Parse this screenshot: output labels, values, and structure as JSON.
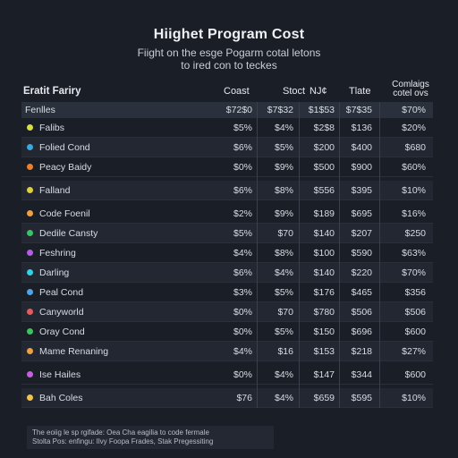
{
  "header": {
    "title": "Hiighet Program Cost",
    "subtitle_line1": "Fiight on the esge Pogarm cotal letons",
    "subtitle_line2": "to ired con to teckes"
  },
  "table": {
    "columns": [
      "Eratit Fariry",
      "Coast",
      "Stoct",
      "NJ¢",
      "Tlate",
      "Comlaigs cotel ovs"
    ],
    "header_row": {
      "name": "Fenlles",
      "values": [
        "$72$0",
        "$7$32",
        "$1$53",
        "$7$35",
        "$70%"
      ]
    },
    "rows": [
      {
        "name": "Falibs",
        "color": "#d6e040",
        "values": [
          "$5%",
          "$4%",
          "$2$8",
          "$136",
          "$20%"
        ]
      },
      {
        "name": "Folied Cond",
        "color": "#39a9e0",
        "values": [
          "$6%",
          "$5%",
          "$200",
          "$400",
          "$680"
        ]
      },
      {
        "name": "Peacy Baidy",
        "color": "#f07f2a",
        "values": [
          "$0%",
          "$9%",
          "$500",
          "$900",
          "$60%"
        ]
      },
      {
        "name": "Falland",
        "color": "#e2cf3c",
        "values": [
          "$6%",
          "$8%",
          "$556",
          "$395",
          "$10%"
        ]
      },
      {
        "name": "Code Foenil",
        "color": "#f0a03c",
        "values": [
          "$2%",
          "$9%",
          "$189",
          "$695",
          "$16%"
        ]
      },
      {
        "name": "Dedile Cansty",
        "color": "#37c463",
        "values": [
          "$5%",
          "$70",
          "$140",
          "$207",
          "$250"
        ]
      },
      {
        "name": "Feshring",
        "color": "#b65be6",
        "values": [
          "$4%",
          "$8%",
          "$100",
          "$590",
          "$63%"
        ]
      },
      {
        "name": "Darling",
        "color": "#2ed3e6",
        "values": [
          "$6%",
          "$4%",
          "$140",
          "$220",
          "$70%"
        ]
      },
      {
        "name": "Peal Cond",
        "color": "#4fa3e8",
        "values": [
          "$3%",
          "$5%",
          "$176",
          "$465",
          "$356"
        ]
      },
      {
        "name": "Canyworld",
        "color": "#e85a5a",
        "values": [
          "$0%",
          "$70",
          "$780",
          "$506",
          "$506"
        ]
      },
      {
        "name": "Oray Cond",
        "color": "#3ac45a",
        "values": [
          "$0%",
          "$5%",
          "$150",
          "$696",
          "$600"
        ]
      },
      {
        "name": "Mame Renaning",
        "color": "#f0a040",
        "values": [
          "$4%",
          "$16",
          "$153",
          "$218",
          "$27%"
        ]
      },
      {
        "name": "Ise Hailes",
        "color": "#c65ee0",
        "values": [
          "$0%",
          "$4%",
          "$147",
          "$344",
          "$600"
        ]
      },
      {
        "name": "Bah Coles",
        "color": "#f2c24a",
        "values": [
          "$76",
          "$4%",
          "$659",
          "$595",
          "$10%"
        ]
      }
    ]
  },
  "footnote": {
    "line1": "The eoiig le sp rgifade: Oea Cha eagilia to code fermale",
    "line2": "Stolta Pos: enfingu: Ilvy Foopa Frades, Stak Pregessiting"
  }
}
